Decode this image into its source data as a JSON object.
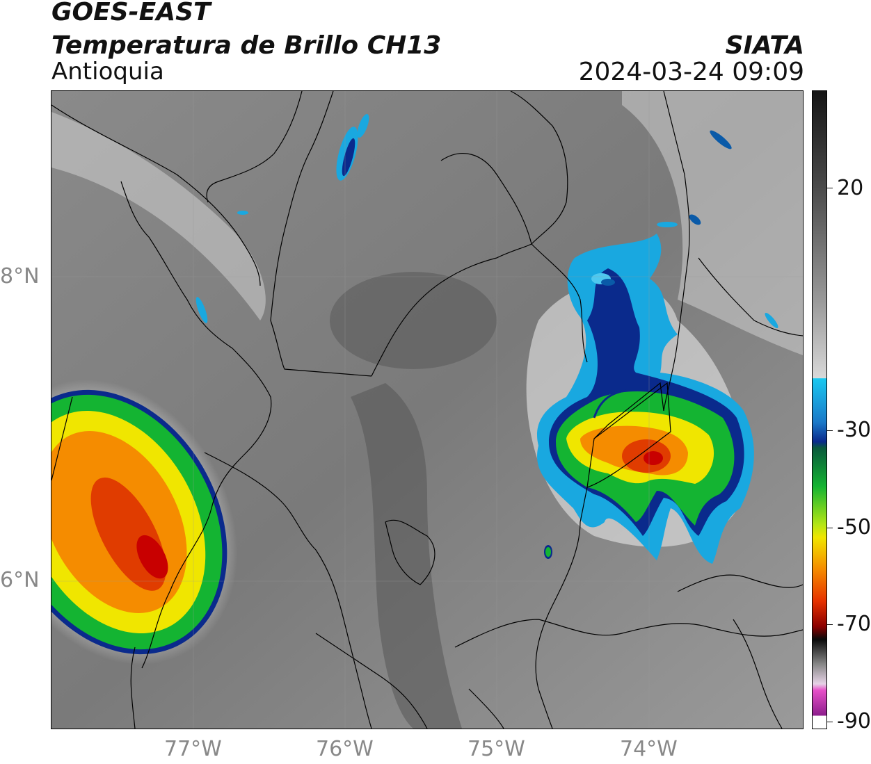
{
  "header": {
    "title_line1": "GOES-EAST",
    "title_line2": "Temperatura de Brillo CH13",
    "region": "Antioquia",
    "agency": "SIATA",
    "datetime": "2024-03-24 09:09"
  },
  "axes": {
    "lat_labels": [
      "8°N",
      "6°N"
    ],
    "lon_labels": [
      "77°W",
      "76°W",
      "75°W",
      "74°W"
    ]
  },
  "colorbar": {
    "ticks": [
      "20",
      "-30",
      "-50",
      "-70",
      "-90"
    ],
    "colors": {
      "warm_gray_top": "#151515",
      "white": "#f5f5f5",
      "cyan": "#19c8f0",
      "blue": "#0a2a8c",
      "green": "#14b432",
      "yellow": "#f0e600",
      "orange": "#f58c00",
      "red": "#c80000",
      "black": "#0a0a0a",
      "pink": "#e650c8",
      "purple": "#8c1e8c"
    }
  }
}
